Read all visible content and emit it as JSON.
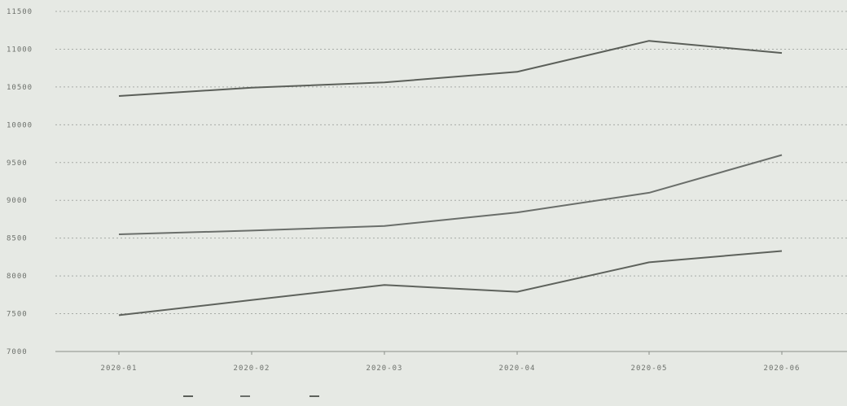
{
  "chart_data": {
    "type": "line",
    "categories": [
      "2020-01",
      "2020-02",
      "2020-03",
      "2020-04",
      "2020-05",
      "2020-06"
    ],
    "x_tick_labels": [
      "2020-01",
      "2020-02",
      "2020-03",
      "2020-04",
      "2020-05",
      "2020-06"
    ],
    "y_ticks": [
      7000,
      7500,
      8000,
      8500,
      9000,
      9500,
      10000,
      10500,
      11000,
      11500
    ],
    "y_tick_labels": [
      "7000",
      "7500",
      "8000",
      "8500",
      "9000",
      "9500",
      "10000",
      "10500",
      "11000",
      "11500"
    ],
    "ylim": [
      7000,
      11500
    ],
    "grid": true,
    "legend_position": "bottom",
    "series": [
      {
        "name": "",
        "color": "#5b5f59",
        "values": [
          10380,
          10490,
          10560,
          10700,
          11110,
          10950
        ]
      },
      {
        "name": "",
        "color": "#6a6e6a",
        "values": [
          8550,
          8600,
          8660,
          8840,
          9100,
          9600
        ]
      },
      {
        "name": "",
        "color": "#5e625c",
        "values": [
          7480,
          7680,
          7880,
          7790,
          8180,
          8330
        ]
      }
    ]
  },
  "legend": {
    "items": [
      "",
      "",
      ""
    ]
  }
}
